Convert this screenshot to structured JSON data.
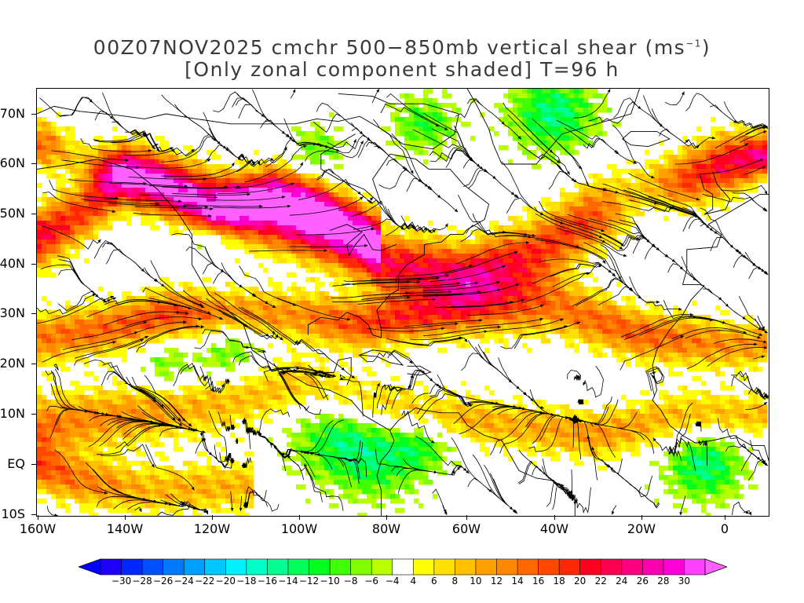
{
  "title": {
    "line1_main": "00Z07NOV2025 cmchr 500−850mb vertical shear (ms",
    "line1_unit_sup": "−1",
    "line1_close": ")",
    "line2": "[Only zonal component shaded] T=96 h"
  },
  "map": {
    "lat_ticks": [
      "70N",
      "60N",
      "50N",
      "40N",
      "30N",
      "20N",
      "10N",
      "EQ",
      "10S"
    ],
    "lon_ticks": [
      "160W",
      "140W",
      "120W",
      "100W",
      "80W",
      "60W",
      "40W",
      "20W",
      "0"
    ],
    "lat_range_deg": [
      -10,
      75
    ],
    "lon_range_deg": [
      -160,
      10
    ]
  },
  "colorbar": {
    "labels": [
      "−30",
      "−28",
      "−26",
      "−24",
      "−22",
      "−20",
      "−18",
      "−16",
      "−14",
      "−12",
      "−10",
      "−8",
      "−6",
      "−4",
      "4",
      "6",
      "8",
      "10",
      "12",
      "14",
      "16",
      "18",
      "20",
      "22",
      "24",
      "26",
      "28",
      "30"
    ],
    "colors": [
      "#1e00ff",
      "#0028ff",
      "#0050ff",
      "#0078ff",
      "#00a0ff",
      "#00c8ff",
      "#00f0ff",
      "#00ffc8",
      "#00ff90",
      "#00ff58",
      "#00ff20",
      "#40ff00",
      "#80ff00",
      "#b8ff00",
      "#ffffff",
      "#ffff00",
      "#ffe000",
      "#ffc000",
      "#ffa000",
      "#ff8800",
      "#ff6800",
      "#ff4800",
      "#ff2800",
      "#ff0020",
      "#ff0050",
      "#ff0080",
      "#ff00b0",
      "#ff00d8",
      "#ff40ff"
    ],
    "under_color": "#0000ff",
    "over_color": "#ff60ff"
  }
}
